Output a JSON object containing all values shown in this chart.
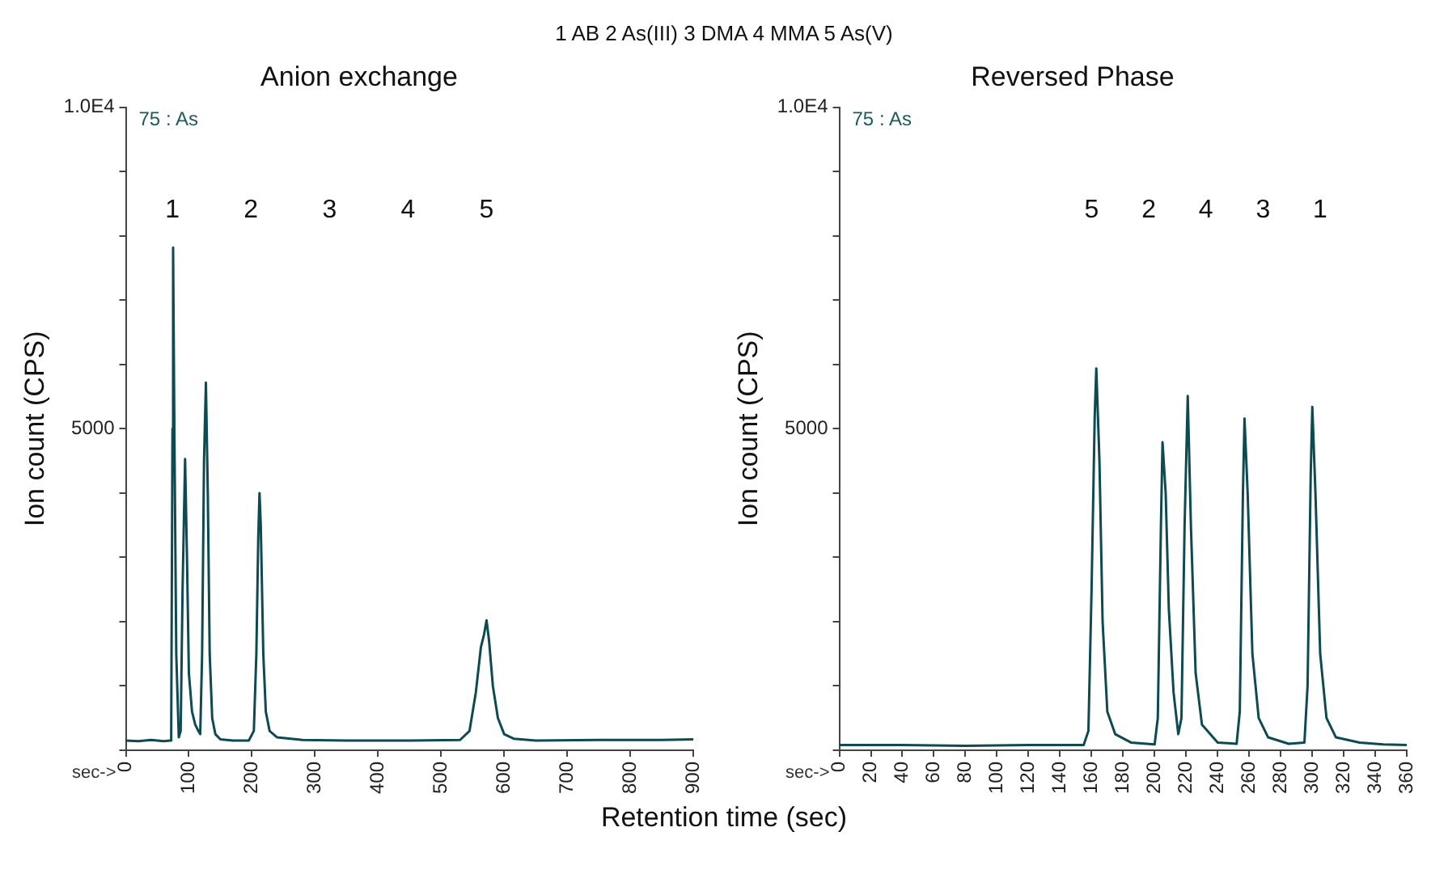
{
  "chart_data": [
    {
      "type": "line",
      "title": "Anion exchange",
      "subtitle": "1 AB  2 As(III)  3 DMA  4 MMA  5 As(V)",
      "xlabel": "Retention time (sec)",
      "ylabel": "Ion count (CPS)",
      "xlim": [
        0,
        900
      ],
      "xticks": [
        0,
        100,
        200,
        300,
        400,
        500,
        600,
        700,
        800,
        900
      ],
      "ylim": [
        0,
        10000
      ],
      "yticks": [
        {
          "value": 0,
          "label": null
        },
        {
          "value": 1000,
          "label": null
        },
        {
          "value": 2000,
          "label": null
        },
        {
          "value": 3000,
          "label": null
        },
        {
          "value": 4000,
          "label": null
        },
        {
          "value": 5000,
          "label": "5000"
        },
        {
          "value": 6000,
          "label": null
        },
        {
          "value": 7000,
          "label": null
        },
        {
          "value": 8000,
          "label": null
        },
        {
          "value": 9000,
          "label": null
        },
        {
          "value": 10000,
          "label": "1.0E4"
        }
      ],
      "grid": false,
      "legend": false,
      "marker": "none",
      "line_style": "solid",
      "series": [
        {
          "color": "#0d4a52",
          "x": [
            0,
            20,
            40,
            60,
            70,
            72,
            74,
            75,
            77,
            80,
            84,
            87,
            90,
            94,
            97,
            100,
            105,
            110,
            115,
            118,
            121,
            124,
            127,
            130,
            133,
            137,
            142,
            150,
            170,
            195,
            203,
            207,
            210,
            212,
            214,
            218,
            222,
            228,
            240,
            280,
            350,
            450,
            530,
            545,
            555,
            563,
            568,
            572,
            576,
            582,
            590,
            600,
            615,
            650,
            750,
            850,
            900
          ],
          "values": [
            150,
            140,
            160,
            140,
            150,
            300,
            5000,
            7820,
            5000,
            1500,
            200,
            300,
            2500,
            4530,
            3000,
            1200,
            600,
            400,
            300,
            250,
            1500,
            4500,
            5720,
            4000,
            1500,
            500,
            250,
            170,
            150,
            150,
            300,
            1500,
            3300,
            4000,
            3500,
            1500,
            600,
            300,
            200,
            160,
            150,
            150,
            160,
            300,
            900,
            1600,
            1800,
            2020,
            1700,
            1000,
            500,
            250,
            180,
            150,
            160,
            160,
            170
          ]
        }
      ],
      "annotations": [
        "75 : As",
        "sec->",
        "1",
        "2",
        "3",
        "4",
        "5"
      ]
    },
    {
      "type": "line",
      "title": "Reversed Phase",
      "ylabel": "Ion count (CPS)",
      "xlim": [
        0,
        360
      ],
      "xticks": [
        0,
        20,
        40,
        60,
        80,
        100,
        120,
        140,
        160,
        180,
        200,
        220,
        240,
        260,
        280,
        300,
        320,
        340,
        360
      ],
      "ylim": [
        0,
        10000
      ],
      "yticks": [
        {
          "value": 0,
          "label": null
        },
        {
          "value": 1000,
          "label": null
        },
        {
          "value": 2000,
          "label": null
        },
        {
          "value": 3000,
          "label": null
        },
        {
          "value": 4000,
          "label": null
        },
        {
          "value": 5000,
          "label": "5000"
        },
        {
          "value": 6000,
          "label": null
        },
        {
          "value": 7000,
          "label": null
        },
        {
          "value": 8000,
          "label": null
        },
        {
          "value": 9000,
          "label": null
        },
        {
          "value": 10000,
          "label": "1.0E4"
        }
      ],
      "grid": false,
      "legend": false,
      "marker": "none",
      "line_style": "solid",
      "series": [
        {
          "color": "#0d4a52",
          "x": [
            0,
            40,
            80,
            120,
            155,
            158,
            160,
            162,
            163,
            165,
            167,
            170,
            175,
            185,
            200,
            202,
            204,
            205,
            207,
            209,
            212,
            215,
            217,
            219,
            221,
            223,
            226,
            230,
            240,
            252,
            254,
            256,
            257,
            259,
            262,
            266,
            272,
            285,
            295,
            297,
            299,
            300,
            302,
            305,
            309,
            315,
            330,
            345,
            360
          ],
          "values": [
            80,
            80,
            70,
            80,
            80,
            300,
            2500,
            5200,
            5940,
            4500,
            2000,
            600,
            250,
            120,
            90,
            500,
            3500,
            4790,
            4000,
            2200,
            900,
            250,
            500,
            3500,
            5510,
            3500,
            1200,
            400,
            120,
            100,
            600,
            4000,
            5160,
            4000,
            1500,
            500,
            200,
            100,
            120,
            1000,
            4300,
            5340,
            4000,
            1500,
            500,
            200,
            120,
            90,
            80
          ]
        }
      ],
      "annotations": [
        "75 : As",
        "sec->",
        "5",
        "2",
        "4",
        "3",
        "1"
      ]
    }
  ]
}
